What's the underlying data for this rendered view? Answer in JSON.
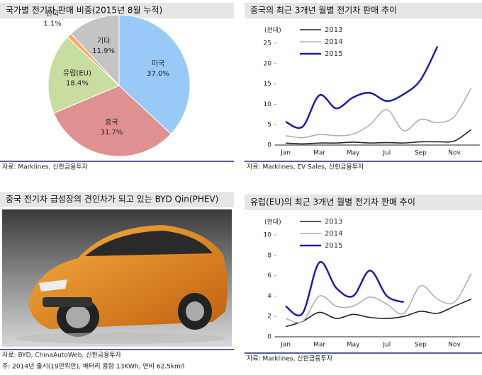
{
  "chart_data": [
    {
      "type": "pie",
      "title": "국가별 전기차 판매 비중(2015년 8월 누적)",
      "source": "자료: Marklines, 신한금융투자",
      "categories": [
        "미국",
        "중국",
        "유럽(EU)",
        "한국",
        "기타"
      ],
      "values": [
        37.0,
        31.7,
        18.4,
        1.1,
        11.9
      ],
      "value_labels": [
        "37.0%",
        "31.7%",
        "18.4%",
        "1.1%",
        "11.9%"
      ],
      "colors": [
        "#99c9f7",
        "#df9090",
        "#c7dea0",
        "#f7ab66",
        "#c4c4c4"
      ]
    },
    {
      "type": "line",
      "title": "중국의 최근 3개년 월별 전기차 판매 추이",
      "source": "자료: Marklines, EV Sales, 신한금융투자",
      "y_label": "(천대)",
      "categories": [
        "Jan",
        null,
        "Mar",
        null,
        "May",
        null,
        "Jul",
        null,
        "Sep",
        null,
        "Nov",
        null
      ],
      "ylim": [
        0,
        25
      ],
      "yticks": [
        0,
        5,
        10,
        15,
        20,
        25
      ],
      "series": [
        {
          "name": "2013",
          "color": "#222222",
          "values": [
            0.5,
            0.3,
            0.5,
            0.5,
            0.7,
            0.5,
            0.6,
            0.5,
            0.8,
            0.8,
            1.0,
            3.8
          ]
        },
        {
          "name": "2014",
          "color": "#b0b0b0",
          "values": [
            2.3,
            1.8,
            2.6,
            2.3,
            2.7,
            5.0,
            8.7,
            3.5,
            6.3,
            5.5,
            7.0,
            14.0
          ]
        },
        {
          "name": "2015",
          "color": "#1c1ca8",
          "values": [
            5.7,
            4.5,
            12.2,
            9.0,
            11.7,
            12.8,
            10.8,
            12.5,
            16.0,
            24.2,
            null,
            null
          ]
        }
      ]
    },
    {
      "type": "line",
      "title": "유럽(EU)의 최근 3개년 월별 전기차 판매 추이",
      "source": "자료: Marklines, 신한금융투자",
      "y_label": "(천대)",
      "categories": [
        "Jan",
        null,
        "Mar",
        null,
        "May",
        null,
        "Jul",
        null,
        "Sep",
        null,
        "Nov",
        null
      ],
      "ylim": [
        0,
        10
      ],
      "yticks": [
        0,
        2,
        4,
        6,
        8,
        10
      ],
      "series": [
        {
          "name": "2013",
          "color": "#222222",
          "values": [
            1.0,
            1.5,
            2.4,
            1.8,
            2.2,
            1.9,
            1.8,
            2.0,
            2.5,
            2.3,
            3.0,
            3.7
          ]
        },
        {
          "name": "2014",
          "color": "#b0b0b0",
          "values": [
            1.8,
            1.5,
            4.0,
            3.0,
            3.0,
            3.9,
            3.2,
            2.3,
            5.0,
            3.7,
            3.4,
            6.2
          ]
        },
        {
          "name": "2015",
          "color": "#1c1ca8",
          "values": [
            3.0,
            2.3,
            7.3,
            4.8,
            4.0,
            6.5,
            4.0,
            3.4,
            null,
            null,
            null,
            null
          ]
        }
      ]
    }
  ],
  "photo_panel": {
    "title": "중국 전기차 급성장의 견인차가 되고 있는 BYD Qin(PHEV)",
    "source": "자료: BYD, ChinaAutoWeb, 신한금융투자",
    "note": "주: 2014년 출시(19만위안), 배터리 용량 13KWh, 연비 62.5km/l"
  }
}
